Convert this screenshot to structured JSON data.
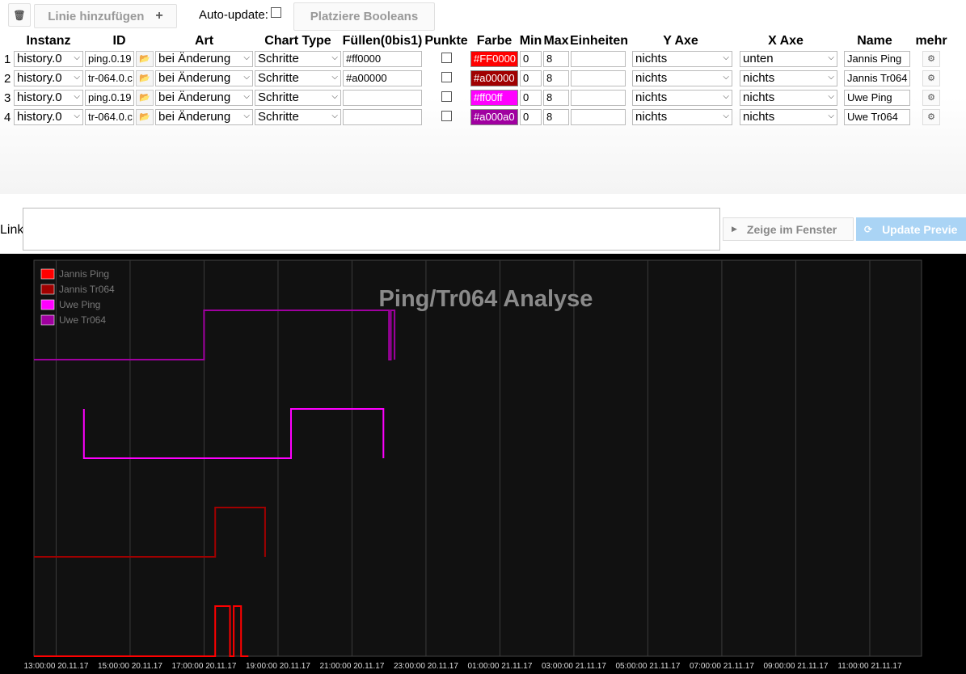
{
  "toolbar": {
    "trash_icon": "trash-icon",
    "add_line_label": "Linie hinzufügen",
    "add_plus": "+",
    "autoupdate_label": "Auto-update:",
    "place_booleans_label": "Platziere Booleans"
  },
  "columns": [
    "Instanz",
    "ID",
    "Art",
    "Chart Type",
    "Füllen(0bis1)",
    "Punkte",
    "Farbe",
    "Min",
    "Max",
    "Einheiten",
    "Y Axe",
    "X Axe",
    "Name",
    "mehr"
  ],
  "rows": [
    {
      "num": "1",
      "instance": "history.0",
      "id": "ping.0.19",
      "art": "bei Änderung",
      "chart_type": "Schritte",
      "fill": "#ff0000",
      "points": false,
      "color": "#FF0000",
      "color_hex": "#ff0000",
      "color_text": "#ffffff",
      "min": "0",
      "max": "8",
      "units": "",
      "y_axis": "nichts",
      "x_axis": "unten",
      "name": "Jannis Ping"
    },
    {
      "num": "2",
      "instance": "history.0",
      "id": "tr-064.0.c",
      "art": "bei Änderung",
      "chart_type": "Schritte",
      "fill": "#a00000",
      "points": false,
      "color": "#a00000",
      "color_hex": "#a00000",
      "color_text": "#ffffff",
      "min": "0",
      "max": "8",
      "units": "",
      "y_axis": "nichts",
      "x_axis": "nichts",
      "name": "Jannis Tr064"
    },
    {
      "num": "3",
      "instance": "history.0",
      "id": "ping.0.19",
      "art": "bei Änderung",
      "chart_type": "Schritte",
      "fill": "",
      "points": false,
      "color": "#ff00ff",
      "color_hex": "#ff00ff",
      "color_text": "#ffffff",
      "min": "0",
      "max": "8",
      "units": "",
      "y_axis": "nichts",
      "x_axis": "nichts",
      "name": "Uwe Ping"
    },
    {
      "num": "4",
      "instance": "history.0",
      "id": "tr-064.0.c",
      "art": "bei Änderung",
      "chart_type": "Schritte",
      "fill": "",
      "points": false,
      "color": "#a000a0",
      "color_hex": "#a000a0",
      "color_text": "#ffffff",
      "min": "0",
      "max": "8",
      "units": "",
      "y_axis": "nichts",
      "x_axis": "nichts",
      "name": "Uwe Tr064"
    }
  ],
  "link": {
    "label": "Link",
    "value": "",
    "show_window_label": "Zeige im Fenster",
    "update_preview_label": "Update Previe"
  },
  "chart_data": {
    "type": "line",
    "title": "Ping/Tr064 Analyse",
    "x_ticks": [
      "13:00:00 20.11.17",
      "15:00:00 20.11.17",
      "17:00:00 20.11.17",
      "19:00:00 20.11.17",
      "21:00:00 20.11.17",
      "23:00:00 20.11.17",
      "01:00:00 21.11.17",
      "03:00:00 21.11.17",
      "05:00:00 21.11.17",
      "07:00:00 21.11.17",
      "09:00:00 21.11.17",
      "11:00:00 21.11.17"
    ],
    "x_unit": "hours",
    "x_range": [
      12.4,
      36.4
    ],
    "legend_position": "top-left",
    "grid": true,
    "background": "#111111",
    "series": [
      {
        "name": "Jannis Ping",
        "color": "#ff0000",
        "steps": [
          [
            12.4,
            0
          ],
          [
            17.3,
            0
          ],
          [
            17.3,
            1
          ],
          [
            17.7,
            1
          ],
          [
            17.7,
            0
          ],
          [
            17.8,
            0
          ],
          [
            17.8,
            1
          ],
          [
            18.0,
            1
          ],
          [
            18.0,
            0
          ],
          [
            18.2,
            0
          ]
        ]
      },
      {
        "name": "Jannis Tr064",
        "color": "#a00000",
        "steps": [
          [
            12.4,
            0
          ],
          [
            17.3,
            0
          ],
          [
            17.3,
            1
          ],
          [
            18.65,
            1
          ],
          [
            18.65,
            0
          ]
        ]
      },
      {
        "name": "Uwe Ping",
        "color": "#ff00ff",
        "steps": [
          [
            13.75,
            1
          ],
          [
            13.75,
            0
          ],
          [
            19.35,
            0
          ],
          [
            19.35,
            1
          ],
          [
            21.85,
            1
          ],
          [
            21.85,
            0
          ]
        ]
      },
      {
        "name": "Uwe Tr064",
        "color": "#a000a0",
        "steps": [
          [
            12.4,
            0
          ],
          [
            17.0,
            0
          ],
          [
            17.0,
            1
          ],
          [
            22.0,
            1
          ],
          [
            22.0,
            0
          ],
          [
            22.05,
            0
          ],
          [
            22.05,
            1
          ],
          [
            22.15,
            1
          ],
          [
            22.15,
            0
          ]
        ]
      }
    ]
  }
}
